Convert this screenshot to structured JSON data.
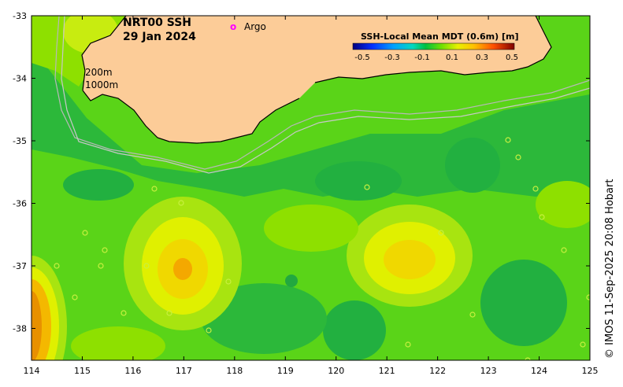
{
  "title": {
    "line1": "NRT00 SSH",
    "line2": "29 Jan 2024"
  },
  "legend": {
    "argo_marker": "o",
    "argo_label": "Argo",
    "argo_color": "#ff00ff"
  },
  "colorbar": {
    "title": "SSH-Local Mean MDT (0.6m) [m]",
    "ticks": [
      "-0.5",
      "-0.3",
      "-0.1",
      "0.1",
      "0.3",
      "0.5"
    ],
    "colors": [
      "#00007f",
      "#0000ff",
      "#0060ff",
      "#00c0ff",
      "#00d8b0",
      "#00c060",
      "#40d020",
      "#a0e000",
      "#e0f000",
      "#ffc000",
      "#ff7000",
      "#d00000",
      "#800000"
    ]
  },
  "contours": {
    "label_200": "200m",
    "label_1000": "1000m"
  },
  "x_ticks": [
    "114",
    "115",
    "116",
    "117",
    "118",
    "119",
    "120",
    "121",
    "122",
    "123",
    "124",
    "125"
  ],
  "y_ticks": [
    "-33",
    "-34",
    "-35",
    "-36",
    "-37",
    "-38"
  ],
  "credit": "© IMOS 11-Sep-2025 20:08 Hobart",
  "colors": {
    "land": "#fccc98",
    "ocean_base": "#5ad418",
    "ocean_dark": "#2cb83a",
    "ocean_light": "#a8e410",
    "warm": "#f0d800",
    "hot": "#f4a000"
  }
}
